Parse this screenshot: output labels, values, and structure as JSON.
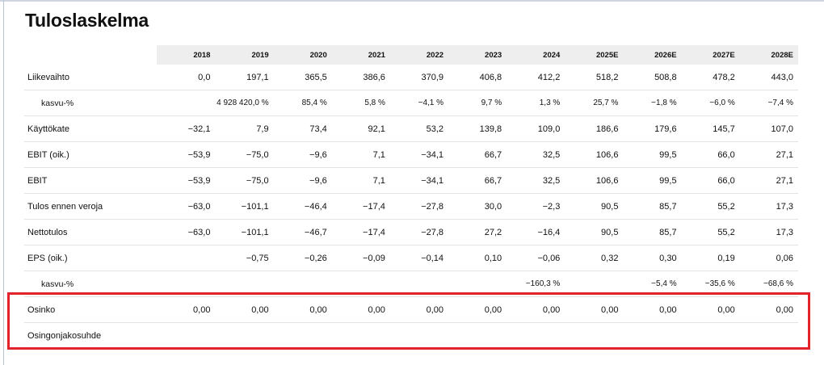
{
  "title": "Tuloslaskelma",
  "years": [
    "2018",
    "2019",
    "2020",
    "2021",
    "2022",
    "2023",
    "2024",
    "2025E",
    "2026E",
    "2027E",
    "2028E"
  ],
  "rows": [
    {
      "label": "Liikevaihto",
      "sub": false,
      "values": [
        "0,0",
        "197,1",
        "365,5",
        "386,6",
        "370,9",
        "406,8",
        "412,2",
        "518,2",
        "508,8",
        "478,2",
        "443,0"
      ]
    },
    {
      "label": "kasvu-%",
      "sub": true,
      "values": [
        "",
        "4 928 420,0 %",
        "85,4 %",
        "5,8 %",
        "−4,1 %",
        "9,7 %",
        "1,3 %",
        "25,7 %",
        "−1,8 %",
        "−6,0 %",
        "−7,4 %"
      ]
    },
    {
      "label": "Käyttökate",
      "sub": false,
      "values": [
        "−32,1",
        "7,9",
        "73,4",
        "92,1",
        "53,2",
        "139,8",
        "109,0",
        "186,6",
        "179,6",
        "145,7",
        "107,0"
      ]
    },
    {
      "label": "EBIT (oik.)",
      "sub": false,
      "values": [
        "−53,9",
        "−75,0",
        "−9,6",
        "7,1",
        "−34,1",
        "66,7",
        "32,5",
        "106,6",
        "99,5",
        "66,0",
        "27,1"
      ]
    },
    {
      "label": "EBIT",
      "sub": false,
      "values": [
        "−53,9",
        "−75,0",
        "−9,6",
        "7,1",
        "−34,1",
        "66,7",
        "32,5",
        "106,6",
        "99,5",
        "66,0",
        "27,1"
      ]
    },
    {
      "label": "Tulos ennen veroja",
      "sub": false,
      "values": [
        "−63,0",
        "−101,1",
        "−46,4",
        "−17,4",
        "−27,8",
        "30,0",
        "−2,3",
        "90,5",
        "85,7",
        "55,2",
        "17,3"
      ]
    },
    {
      "label": "Nettotulos",
      "sub": false,
      "values": [
        "−63,0",
        "−101,1",
        "−46,7",
        "−17,4",
        "−27,8",
        "27,2",
        "−16,4",
        "90,5",
        "85,7",
        "55,2",
        "17,3"
      ]
    },
    {
      "label": "EPS (oik.)",
      "sub": false,
      "values": [
        "",
        "−0,75",
        "−0,26",
        "−0,09",
        "−0,14",
        "0,10",
        "−0,06",
        "0,32",
        "0,30",
        "0,19",
        "0,06"
      ]
    },
    {
      "label": "kasvu-%",
      "sub": true,
      "values": [
        "",
        "",
        "",
        "",
        "",
        "",
        "−160,3 %",
        "",
        "−5,4 %",
        "−35,6 %",
        "−68,6 %"
      ]
    },
    {
      "label": "Osinko",
      "sub": false,
      "values": [
        "0,00",
        "0,00",
        "0,00",
        "0,00",
        "0,00",
        "0,00",
        "0,00",
        "0,00",
        "0,00",
        "0,00",
        "0,00"
      ]
    },
    {
      "label": "Osingonjakosuhde",
      "sub": false,
      "values": [
        "",
        "",
        "",
        "",
        "",
        "",
        "",
        "",
        "",
        "",
        ""
      ]
    }
  ],
  "colors": {
    "highlight": "#e3232c",
    "header_bg": "#eeeeee"
  }
}
